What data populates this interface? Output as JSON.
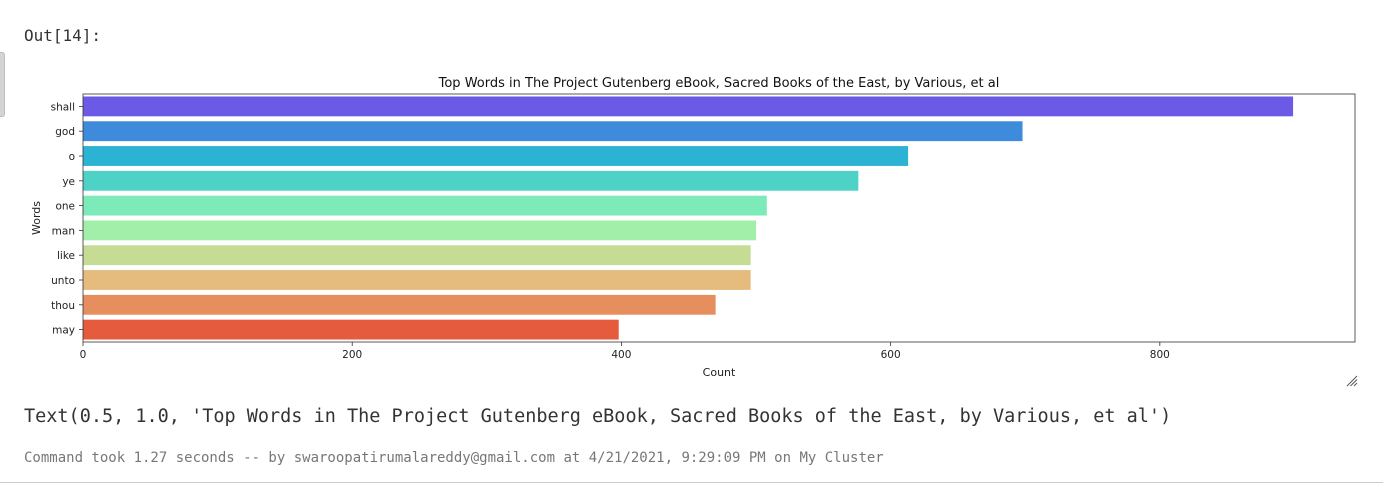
{
  "cell": {
    "out_label": "Out[14]:",
    "text_output": "Text(0.5, 1.0, 'Top Words in The Project Gutenberg eBook, Sacred Books of the East, by Various, et al')",
    "command_info": "Command took 1.27 seconds -- by swaroopatirumalareddy@gmail.com at 4/21/2021, 9:29:09 PM on My Cluster"
  },
  "chart_data": {
    "type": "bar",
    "orientation": "horizontal",
    "title": "Top Words in The Project Gutenberg eBook, Sacred Books of the East, by Various, et al",
    "xlabel": "Count",
    "ylabel": "Words",
    "categories": [
      "shall",
      "god",
      "o",
      "ye",
      "one",
      "man",
      "like",
      "unto",
      "thou",
      "may"
    ],
    "values": [
      899,
      698,
      613,
      576,
      508,
      500,
      496,
      496,
      470,
      398
    ],
    "colors": [
      "#6a5ae6",
      "#3e8bdc",
      "#2cb2d2",
      "#4ed2c6",
      "#7deab9",
      "#a2efaa",
      "#c6dc95",
      "#e6bb7e",
      "#e68e5e",
      "#e45c3d"
    ],
    "xlim": [
      0,
      945
    ],
    "xticks": [
      "0",
      "200",
      "400",
      "600",
      "800"
    ],
    "grid": false,
    "legend": "none"
  }
}
